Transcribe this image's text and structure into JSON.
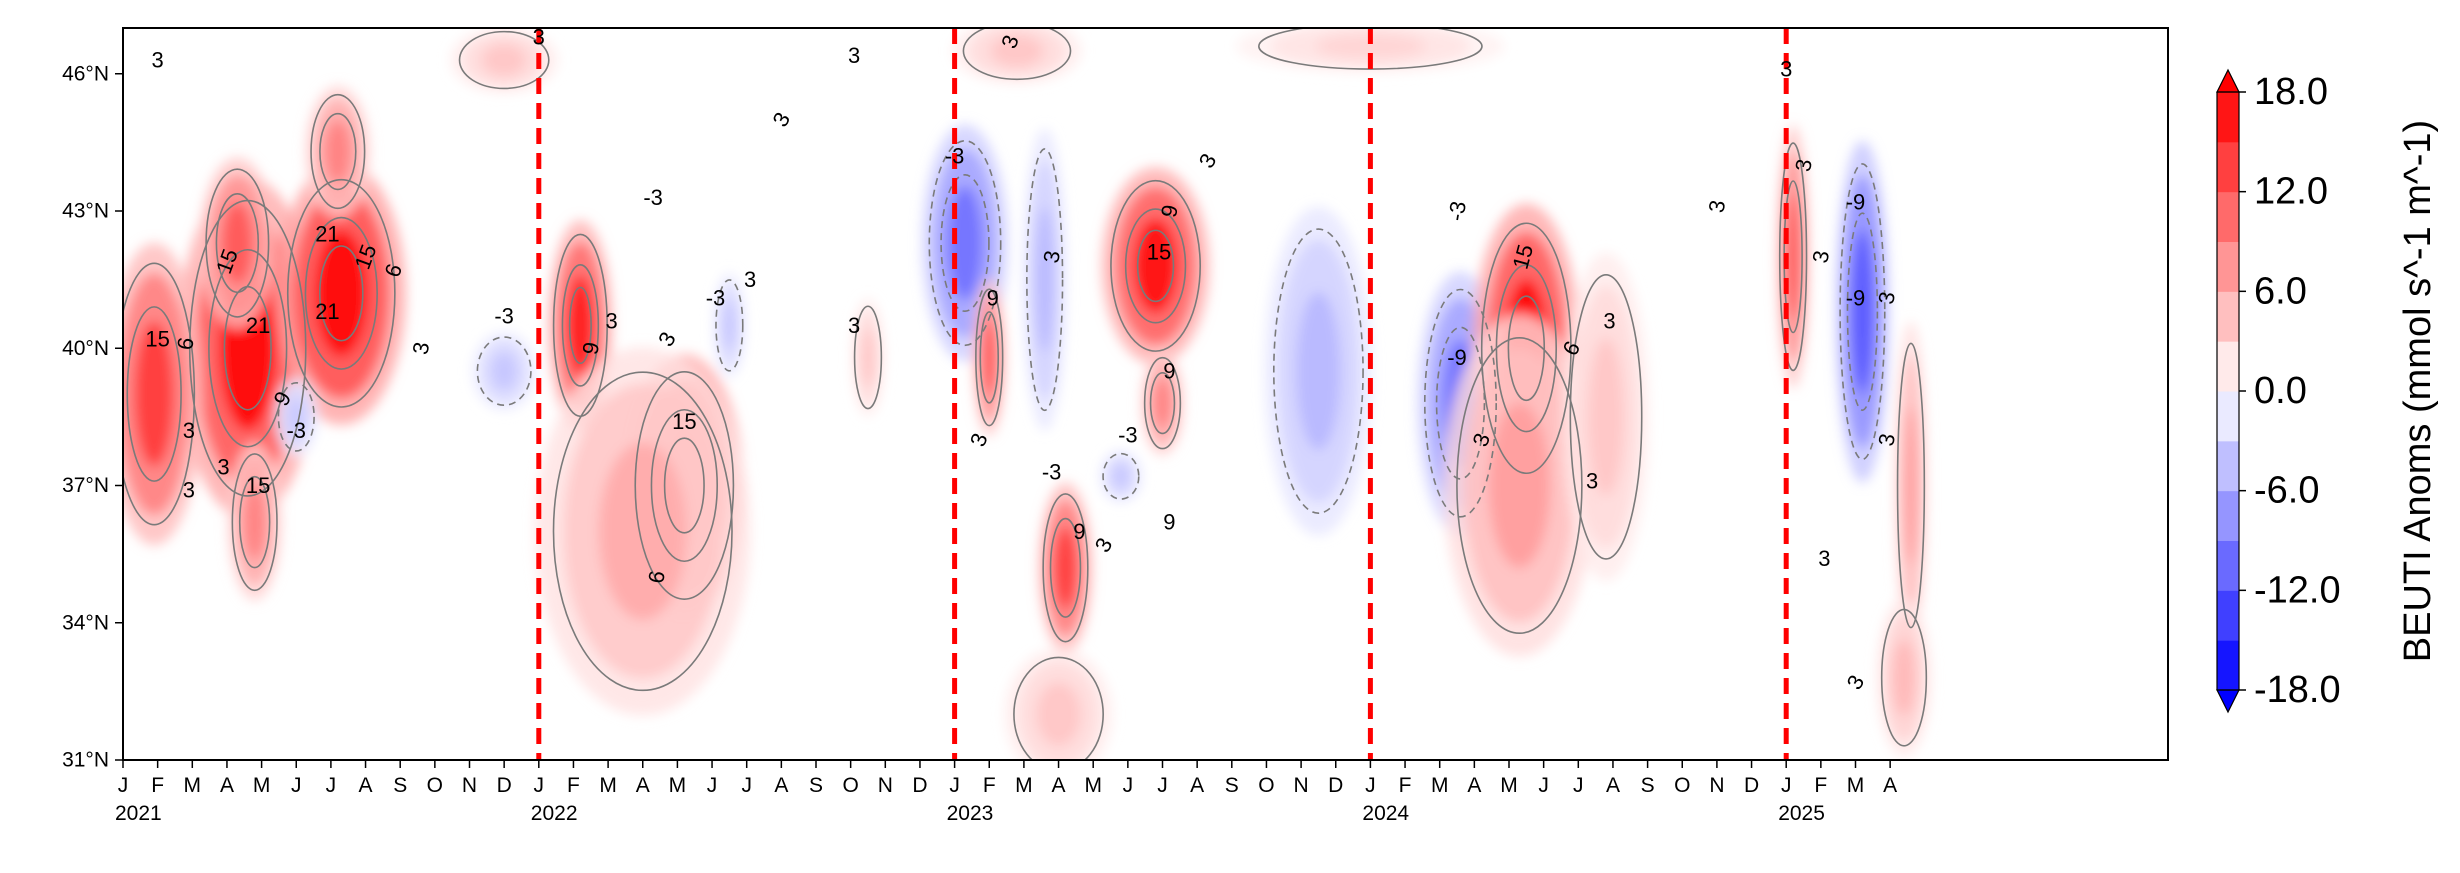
{
  "chart_data": {
    "type": "heatmap",
    "title": "",
    "xlabel": "",
    "ylabel": "",
    "x_range": [
      "2021-01",
      "2025-04"
    ],
    "y_range": [
      31,
      47
    ],
    "x_month_labels": [
      "J",
      "F",
      "M",
      "A",
      "M",
      "J",
      "J",
      "A",
      "S",
      "O",
      "N",
      "D",
      "J",
      "F",
      "M",
      "A",
      "M",
      "J",
      "J",
      "A",
      "S",
      "O",
      "N",
      "D",
      "J",
      "F",
      "M",
      "A",
      "M",
      "J",
      "J",
      "A",
      "S",
      "O",
      "N",
      "D",
      "J",
      "F",
      "M",
      "A",
      "M",
      "J",
      "J",
      "A",
      "S",
      "O",
      "N",
      "D",
      "J",
      "F",
      "M",
      "A"
    ],
    "x_year_labels": [
      {
        "label": "2021",
        "month_index": 0
      },
      {
        "label": "2022",
        "month_index": 12
      },
      {
        "label": "2023",
        "month_index": 24
      },
      {
        "label": "2024",
        "month_index": 36
      },
      {
        "label": "2025",
        "month_index": 48
      }
    ],
    "y_tick_labels": [
      {
        "label": "31°N",
        "lat": 31
      },
      {
        "label": "34°N",
        "lat": 34
      },
      {
        "label": "37°N",
        "lat": 37
      },
      {
        "label": "40°N",
        "lat": 40
      },
      {
        "label": "43°N",
        "lat": 43
      },
      {
        "label": "46°N",
        "lat": 46
      }
    ],
    "year_boundaries_month_index": [
      12,
      24,
      36,
      48
    ],
    "year_boundary_color": "#ff0000",
    "colorbar": {
      "label": "BEUTI Anoms (mmol s^-1 m^-1)",
      "ticks": [
        "18.0",
        "12.0",
        "6.0",
        "0.0",
        "-6.0",
        "-12.0",
        "-18.0"
      ],
      "tick_values": [
        18,
        12,
        6,
        0,
        -6,
        -12,
        -18
      ],
      "range": [
        -18,
        18
      ],
      "cmap": "bwr",
      "extend": "both"
    },
    "features": [
      {
        "m": 3.6,
        "lat": 40.0,
        "sx": 1.3,
        "sy": 2.6,
        "v": 18
      },
      {
        "m": 3.3,
        "lat": 42.3,
        "sx": 0.7,
        "sy": 1.3,
        "v": 12
      },
      {
        "m": 3.8,
        "lat": 36.2,
        "sx": 0.5,
        "sy": 1.2,
        "v": 9
      },
      {
        "m": 0.9,
        "lat": 39.0,
        "sx": 0.9,
        "sy": 2.3,
        "v": 14
      },
      {
        "m": 6.3,
        "lat": 41.2,
        "sx": 1.2,
        "sy": 2.0,
        "v": 19
      },
      {
        "m": 6.2,
        "lat": 44.3,
        "sx": 0.6,
        "sy": 1.0,
        "v": 9
      },
      {
        "m": 5.0,
        "lat": 38.5,
        "sx": 0.4,
        "sy": 0.6,
        "v": -4
      },
      {
        "m": 11.0,
        "lat": 39.5,
        "sx": 0.6,
        "sy": 0.6,
        "v": -4
      },
      {
        "m": 13.2,
        "lat": 40.5,
        "sx": 0.6,
        "sy": 1.6,
        "v": 16
      },
      {
        "m": 16.2,
        "lat": 37.0,
        "sx": 1.1,
        "sy": 2.0,
        "v": 17
      },
      {
        "m": 15.0,
        "lat": 36.0,
        "sx": 2.0,
        "sy": 2.8,
        "v": 6
      },
      {
        "m": 17.5,
        "lat": 40.5,
        "sx": 0.3,
        "sy": 0.8,
        "v": -4
      },
      {
        "m": 21.5,
        "lat": 39.8,
        "sx": 0.3,
        "sy": 0.9,
        "v": 4
      },
      {
        "m": 24.3,
        "lat": 42.3,
        "sx": 0.8,
        "sy": 1.8,
        "v": -10
      },
      {
        "m": 25.0,
        "lat": 39.8,
        "sx": 0.3,
        "sy": 1.2,
        "v": 12
      },
      {
        "m": 26.6,
        "lat": 41.5,
        "sx": 0.4,
        "sy": 2.3,
        "v": -5
      },
      {
        "m": 27.2,
        "lat": 35.2,
        "sx": 0.5,
        "sy": 1.3,
        "v": 14
      },
      {
        "m": 29.8,
        "lat": 41.8,
        "sx": 1.0,
        "sy": 1.5,
        "v": 17
      },
      {
        "m": 30.0,
        "lat": 38.8,
        "sx": 0.4,
        "sy": 0.8,
        "v": 9
      },
      {
        "m": 28.8,
        "lat": 37.2,
        "sx": 0.4,
        "sy": 0.4,
        "v": -4
      },
      {
        "m": 34.5,
        "lat": 39.5,
        "sx": 1.0,
        "sy": 2.5,
        "v": -5
      },
      {
        "m": 38.6,
        "lat": 38.8,
        "sx": 0.8,
        "sy": 2.0,
        "v": -10
      },
      {
        "m": 40.5,
        "lat": 40.0,
        "sx": 1.0,
        "sy": 2.2,
        "v": 18
      },
      {
        "m": 40.3,
        "lat": 37.0,
        "sx": 1.4,
        "sy": 2.6,
        "v": 7
      },
      {
        "m": 42.8,
        "lat": 38.5,
        "sx": 0.8,
        "sy": 2.5,
        "v": 4
      },
      {
        "m": 48.2,
        "lat": 42.0,
        "sx": 0.3,
        "sy": 2.0,
        "v": 12
      },
      {
        "m": 50.2,
        "lat": 40.8,
        "sx": 0.5,
        "sy": 2.6,
        "v": -12
      },
      {
        "m": 51.6,
        "lat": 37.0,
        "sx": 0.3,
        "sy": 2.5,
        "v": 7
      },
      {
        "m": 51.4,
        "lat": 32.8,
        "sx": 0.5,
        "sy": 1.2,
        "v": 5
      },
      {
        "m": 11.0,
        "lat": 46.3,
        "sx": 1.0,
        "sy": 0.5,
        "v": 4
      },
      {
        "m": 25.8,
        "lat": 46.5,
        "sx": 1.2,
        "sy": 0.5,
        "v": 4
      },
      {
        "m": 36.0,
        "lat": 46.6,
        "sx": 2.5,
        "sy": 0.4,
        "v": 3
      },
      {
        "m": 27.0,
        "lat": 32.0,
        "sx": 1.0,
        "sy": 1.0,
        "v": 4
      }
    ],
    "contour_labels": [
      {
        "text": "3",
        "m": 1.0,
        "lat": 46.3,
        "rot": 0
      },
      {
        "text": "15",
        "m": 1.0,
        "lat": 40.2,
        "rot": 0
      },
      {
        "text": "6",
        "m": 1.8,
        "lat": 40.1,
        "rot": -80
      },
      {
        "text": "3",
        "m": 1.9,
        "lat": 38.2,
        "rot": 0
      },
      {
        "text": "3",
        "m": 1.9,
        "lat": 36.9,
        "rot": 0
      },
      {
        "text": "3",
        "m": 2.9,
        "lat": 37.4,
        "rot": 0
      },
      {
        "text": "15",
        "m": 3.0,
        "lat": 41.9,
        "rot": -70
      },
      {
        "text": "21",
        "m": 3.9,
        "lat": 40.5,
        "rot": 0
      },
      {
        "text": "9",
        "m": 4.6,
        "lat": 38.9,
        "rot": -60
      },
      {
        "text": "-3",
        "m": 5.0,
        "lat": 38.2,
        "rot": 0
      },
      {
        "text": "15",
        "m": 3.9,
        "lat": 37.0,
        "rot": 0
      },
      {
        "text": "21",
        "m": 5.9,
        "lat": 42.5,
        "rot": 0
      },
      {
        "text": "15",
        "m": 7.0,
        "lat": 42.0,
        "rot": -70
      },
      {
        "text": "6",
        "m": 7.8,
        "lat": 41.7,
        "rot": -70
      },
      {
        "text": "21",
        "m": 5.9,
        "lat": 40.8,
        "rot": 0
      },
      {
        "text": "3",
        "m": 8.6,
        "lat": 40.0,
        "rot": -80
      },
      {
        "text": "-3",
        "m": 11.0,
        "lat": 40.7,
        "rot": 0
      },
      {
        "text": "3",
        "m": 12.0,
        "lat": 46.8,
        "rot": 0
      },
      {
        "text": "9",
        "m": 13.5,
        "lat": 40.0,
        "rot": -80
      },
      {
        "text": "3",
        "m": 14.1,
        "lat": 40.6,
        "rot": 0
      },
      {
        "text": "3",
        "m": 15.7,
        "lat": 40.2,
        "rot": -60
      },
      {
        "text": "15",
        "m": 16.2,
        "lat": 38.4,
        "rot": 0
      },
      {
        "text": "6",
        "m": 15.4,
        "lat": 35.0,
        "rot": -80
      },
      {
        "text": "-3",
        "m": 15.3,
        "lat": 43.3,
        "rot": 0
      },
      {
        "text": "-3",
        "m": 17.1,
        "lat": 41.1,
        "rot": 0
      },
      {
        "text": "3",
        "m": 18.1,
        "lat": 41.5,
        "rot": 0
      },
      {
        "text": "3",
        "m": 19.0,
        "lat": 45.0,
        "rot": -60
      },
      {
        "text": "3",
        "m": 21.1,
        "lat": 40.5,
        "rot": 0
      },
      {
        "text": "3",
        "m": 21.1,
        "lat": 46.4,
        "rot": 0
      },
      {
        "text": "-3",
        "m": 24.0,
        "lat": 44.2,
        "rot": 0
      },
      {
        "text": "3",
        "m": 25.6,
        "lat": 46.7,
        "rot": -70
      },
      {
        "text": "9",
        "m": 25.1,
        "lat": 41.1,
        "rot": 0
      },
      {
        "text": "3",
        "m": 24.7,
        "lat": 38.0,
        "rot": -70
      },
      {
        "text": "3",
        "m": 26.8,
        "lat": 42.0,
        "rot": -80
      },
      {
        "text": "-3",
        "m": 26.8,
        "lat": 37.3,
        "rot": 0
      },
      {
        "text": "9",
        "m": 27.6,
        "lat": 36.0,
        "rot": 0
      },
      {
        "text": "3",
        "m": 28.3,
        "lat": 35.7,
        "rot": -60
      },
      {
        "text": "-3",
        "m": 29.0,
        "lat": 38.1,
        "rot": 0
      },
      {
        "text": "15",
        "m": 29.9,
        "lat": 42.1,
        "rot": 0
      },
      {
        "text": "9",
        "m": 30.2,
        "lat": 43.0,
        "rot": -80
      },
      {
        "text": "3",
        "m": 31.3,
        "lat": 44.1,
        "rot": -60
      },
      {
        "text": "9",
        "m": 30.2,
        "lat": 39.5,
        "rot": 0
      },
      {
        "text": "9",
        "m": 30.2,
        "lat": 36.2,
        "rot": 0
      },
      {
        "text": "-3",
        "m": 38.5,
        "lat": 43.0,
        "rot": -80
      },
      {
        "text": "-9",
        "m": 38.5,
        "lat": 39.8,
        "rot": 0
      },
      {
        "text": "3",
        "m": 39.2,
        "lat": 38.0,
        "rot": -70
      },
      {
        "text": "15",
        "m": 40.4,
        "lat": 42.0,
        "rot": -75
      },
      {
        "text": "6",
        "m": 41.8,
        "lat": 40.0,
        "rot": -60
      },
      {
        "text": "3",
        "m": 42.9,
        "lat": 40.6,
        "rot": 0
      },
      {
        "text": "3",
        "m": 42.4,
        "lat": 37.1,
        "rot": 0
      },
      {
        "text": "3",
        "m": 46.0,
        "lat": 43.1,
        "rot": -80
      },
      {
        "text": "3",
        "m": 48.0,
        "lat": 46.1,
        "rot": 0
      },
      {
        "text": "3",
        "m": 48.5,
        "lat": 44.0,
        "rot": -80
      },
      {
        "text": "3",
        "m": 49.0,
        "lat": 42.0,
        "rot": -80
      },
      {
        "text": "-9",
        "m": 50.0,
        "lat": 43.2,
        "rot": 0
      },
      {
        "text": "-9",
        "m": 50.0,
        "lat": 41.1,
        "rot": 0
      },
      {
        "text": "3",
        "m": 50.9,
        "lat": 41.1,
        "rot": -80
      },
      {
        "text": "3",
        "m": 50.9,
        "lat": 38.0,
        "rot": -80
      },
      {
        "text": "3",
        "m": 49.1,
        "lat": 35.4,
        "rot": 0
      },
      {
        "text": "3",
        "m": 50.0,
        "lat": 32.7,
        "rot": -60
      }
    ]
  }
}
